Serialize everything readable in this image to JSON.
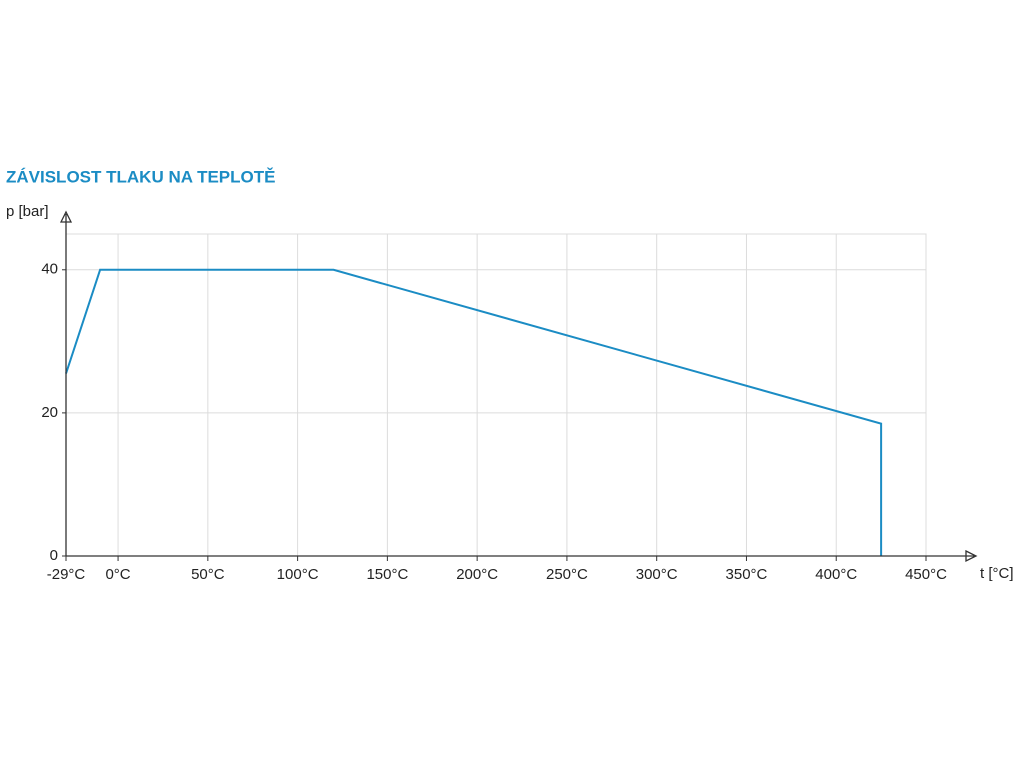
{
  "chart_data": {
    "type": "line",
    "title": "ZÁVISLOST TLAKU NA TEPLOTĚ",
    "y_label": "p [bar]",
    "x_label": "t [°C]",
    "x": [
      -29,
      -10,
      120,
      425,
      425
    ],
    "series": [
      {
        "color": "#1b8cc4",
        "values": [
          25.5,
          40,
          40,
          18.5,
          0
        ]
      }
    ],
    "xlim": [
      -29,
      450
    ],
    "ylim": [
      0,
      45
    ],
    "xticks": [
      {
        "value": -29,
        "label": "-29°C"
      },
      {
        "value": 0,
        "label": "0°C"
      },
      {
        "value": 50,
        "label": "50°C"
      },
      {
        "value": 100,
        "label": "100°C"
      },
      {
        "value": 150,
        "label": "150°C"
      },
      {
        "value": 200,
        "label": "200°C"
      },
      {
        "value": 250,
        "label": "250°C"
      },
      {
        "value": 300,
        "label": "300°C"
      },
      {
        "value": 350,
        "label": "350°C"
      },
      {
        "value": 400,
        "label": "400°C"
      },
      {
        "value": 450,
        "label": "450°C"
      }
    ],
    "yticks": [
      0,
      20,
      40
    ],
    "grid": true,
    "title_color": "#1b8cc4"
  }
}
